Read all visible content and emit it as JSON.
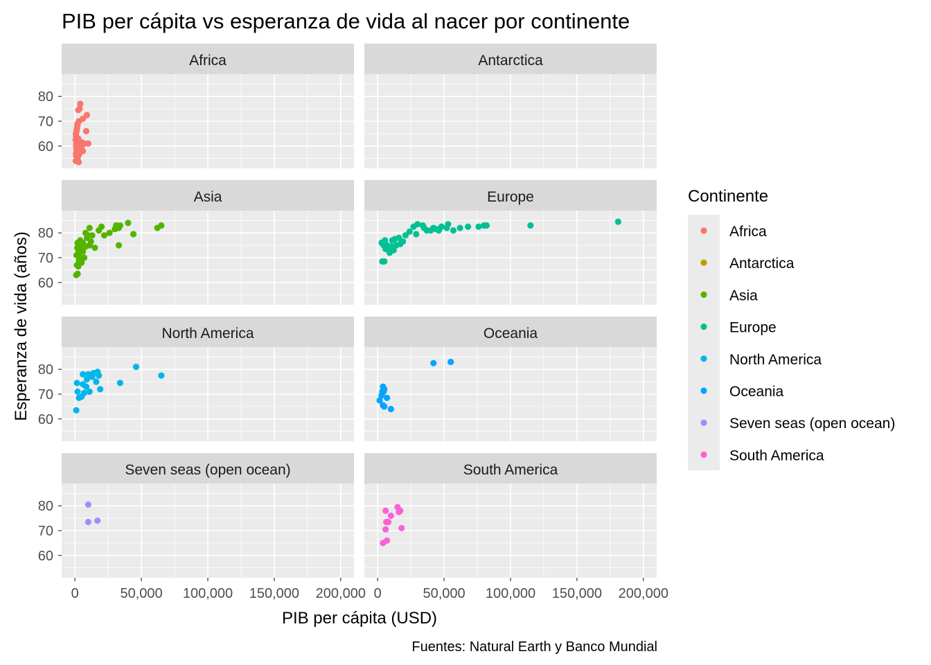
{
  "chart_data": {
    "type": "scatter",
    "facet": "Continente",
    "title": "PIB per cápita vs esperanza de vida al nacer por continente",
    "xlabel": "PIB per cápita  (USD)",
    "ylabel": "Esperanza de vida (años)",
    "caption": "Fuentes: Natural Earth y Banco Mundial",
    "xlim": [
      -10000,
      210000
    ],
    "ylim": [
      51,
      89
    ],
    "x_ticks": [
      0,
      50000,
      100000,
      150000,
      200000
    ],
    "x_tick_labels": [
      "0",
      "50,000",
      "100,000",
      "150,000",
      "200,000"
    ],
    "y_ticks": [
      60,
      70,
      80
    ],
    "y_tick_labels": [
      "60",
      "70",
      "80"
    ],
    "grid": true,
    "legend": {
      "title": "Continente",
      "placement": "right"
    },
    "series": [
      {
        "name": "Africa",
        "color": "#F8766D",
        "points": [
          [
            4000,
            77
          ],
          [
            3500,
            75
          ],
          [
            2500,
            74.5
          ],
          [
            9000,
            72.5
          ],
          [
            6000,
            71
          ],
          [
            3000,
            70
          ],
          [
            2000,
            69
          ],
          [
            1800,
            68
          ],
          [
            1500,
            67
          ],
          [
            8500,
            66
          ],
          [
            1200,
            66
          ],
          [
            700,
            65
          ],
          [
            900,
            64
          ],
          [
            1000,
            63.5
          ],
          [
            2500,
            63
          ],
          [
            500,
            62.5
          ],
          [
            1500,
            62
          ],
          [
            3000,
            62
          ],
          [
            5000,
            61.5
          ],
          [
            7000,
            61
          ],
          [
            10000,
            61
          ],
          [
            1000,
            61
          ],
          [
            2000,
            61
          ],
          [
            3500,
            61
          ],
          [
            6000,
            60.5
          ],
          [
            900,
            60
          ],
          [
            1600,
            60
          ],
          [
            2200,
            59.5
          ],
          [
            3000,
            59
          ],
          [
            1200,
            58.5
          ],
          [
            4500,
            58
          ],
          [
            6000,
            58
          ],
          [
            2500,
            57.5
          ],
          [
            800,
            57
          ],
          [
            1700,
            57
          ],
          [
            3000,
            56.5
          ],
          [
            1000,
            56
          ],
          [
            2000,
            55
          ],
          [
            600,
            54
          ],
          [
            1500,
            54
          ],
          [
            2800,
            53.5
          ]
        ]
      },
      {
        "name": "Antarctica",
        "color": "#C49A00",
        "points": []
      },
      {
        "name": "Asia",
        "color": "#53B400",
        "points": [
          [
            2000,
            63.5
          ],
          [
            1000,
            63
          ],
          [
            2500,
            66.5
          ],
          [
            1500,
            67
          ],
          [
            5000,
            68
          ],
          [
            3000,
            69
          ],
          [
            4000,
            70
          ],
          [
            7000,
            70
          ],
          [
            2000,
            71
          ],
          [
            1200,
            71
          ],
          [
            3500,
            72
          ],
          [
            6000,
            72.5
          ],
          [
            2500,
            73
          ],
          [
            4500,
            73
          ],
          [
            1800,
            74
          ],
          [
            5500,
            74
          ],
          [
            15000,
            74
          ],
          [
            8000,
            74.5
          ],
          [
            3000,
            75
          ],
          [
            11000,
            75
          ],
          [
            33000,
            75
          ],
          [
            2000,
            76
          ],
          [
            6000,
            76
          ],
          [
            12000,
            76.5
          ],
          [
            4000,
            77
          ],
          [
            9000,
            78
          ],
          [
            10000,
            79
          ],
          [
            13000,
            79
          ],
          [
            22000,
            79
          ],
          [
            44000,
            79.5
          ],
          [
            8000,
            80
          ],
          [
            26000,
            80
          ],
          [
            18000,
            81
          ],
          [
            30000,
            81.5
          ],
          [
            33000,
            82
          ],
          [
            11000,
            82
          ],
          [
            62000,
            82
          ],
          [
            20000,
            82.5
          ],
          [
            34000,
            83
          ],
          [
            65000,
            83
          ],
          [
            31000,
            83
          ],
          [
            40000,
            84
          ]
        ]
      },
      {
        "name": "Europe",
        "color": "#00C094",
        "points": [
          [
            5000,
            68.5
          ],
          [
            3500,
            68.5
          ],
          [
            9000,
            72
          ],
          [
            12000,
            73
          ],
          [
            6000,
            73.5
          ],
          [
            8000,
            74
          ],
          [
            10000,
            74.5
          ],
          [
            4500,
            75
          ],
          [
            7000,
            75
          ],
          [
            14000,
            75
          ],
          [
            17000,
            75.5
          ],
          [
            3000,
            76
          ],
          [
            19000,
            76.5
          ],
          [
            11000,
            77
          ],
          [
            5500,
            77
          ],
          [
            13000,
            77.5
          ],
          [
            16000,
            78
          ],
          [
            21000,
            79
          ],
          [
            29000,
            79.5
          ],
          [
            24000,
            80.5
          ],
          [
            37000,
            81
          ],
          [
            40000,
            81
          ],
          [
            46000,
            81
          ],
          [
            57000,
            81
          ],
          [
            44000,
            81.5
          ],
          [
            52000,
            82
          ],
          [
            35000,
            82
          ],
          [
            42000,
            82
          ],
          [
            62000,
            82
          ],
          [
            48000,
            82.5
          ],
          [
            76000,
            82.5
          ],
          [
            27000,
            82.5
          ],
          [
            68000,
            82.5
          ],
          [
            80000,
            83
          ],
          [
            34000,
            83
          ],
          [
            82000,
            83
          ],
          [
            115000,
            83
          ],
          [
            53000,
            83.5
          ],
          [
            30000,
            83.5
          ],
          [
            181000,
            84.5
          ]
        ]
      },
      {
        "name": "North America",
        "color": "#00B6EB",
        "points": [
          [
            1000,
            63.5
          ],
          [
            3000,
            68.5
          ],
          [
            5000,
            69
          ],
          [
            7000,
            70.5
          ],
          [
            2000,
            71
          ],
          [
            11000,
            71
          ],
          [
            19000,
            72
          ],
          [
            8500,
            73
          ],
          [
            6000,
            74
          ],
          [
            1500,
            74.5
          ],
          [
            34000,
            74.5
          ],
          [
            16000,
            75
          ],
          [
            9000,
            76
          ],
          [
            13000,
            77
          ],
          [
            18000,
            77.5
          ],
          [
            65000,
            77.5
          ],
          [
            6000,
            78
          ],
          [
            10000,
            78
          ],
          [
            14000,
            78.5
          ],
          [
            17000,
            79
          ],
          [
            46000,
            81
          ]
        ]
      },
      {
        "name": "Oceania",
        "color": "#06A4FF",
        "points": [
          [
            10000,
            64
          ],
          [
            5000,
            65
          ],
          [
            4000,
            65.5
          ],
          [
            1500,
            67.5
          ],
          [
            7000,
            68.5
          ],
          [
            3000,
            69.5
          ],
          [
            3500,
            71
          ],
          [
            4500,
            71
          ],
          [
            5000,
            72
          ],
          [
            4000,
            73
          ],
          [
            42000,
            82.5
          ],
          [
            55000,
            83
          ]
        ]
      },
      {
        "name": "Seven seas (open ocean)",
        "color": "#A58AFF",
        "points": [
          [
            10000,
            73.5
          ],
          [
            17000,
            74
          ],
          [
            10000,
            80.5
          ]
        ]
      },
      {
        "name": "South America",
        "color": "#FB61D7",
        "points": [
          [
            4000,
            65
          ],
          [
            7000,
            66
          ],
          [
            6000,
            70.5
          ],
          [
            18000,
            71
          ],
          [
            6500,
            73.5
          ],
          [
            8000,
            73.5
          ],
          [
            10000,
            76
          ],
          [
            16000,
            77.5
          ],
          [
            6000,
            78
          ],
          [
            17000,
            78
          ],
          [
            15000,
            79.5
          ]
        ]
      }
    ]
  }
}
